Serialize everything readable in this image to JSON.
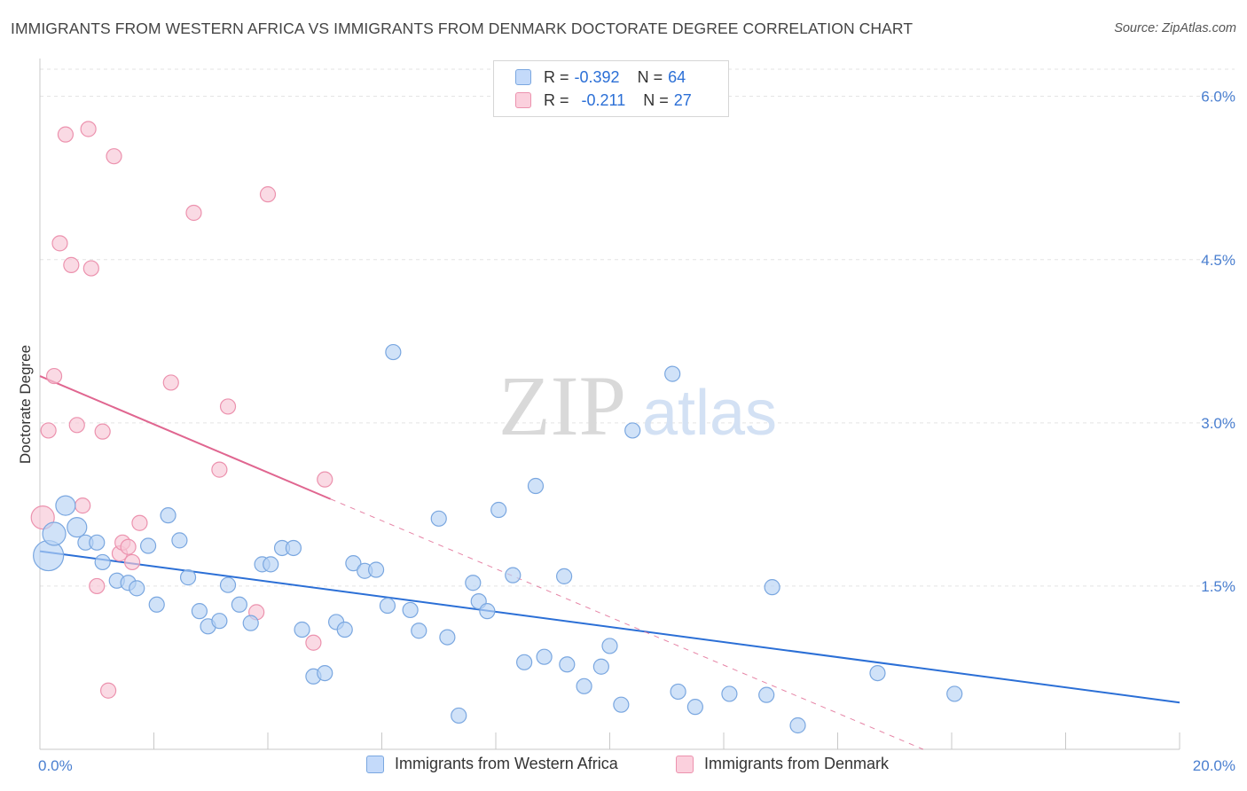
{
  "title": "IMMIGRANTS FROM WESTERN AFRICA VS IMMIGRANTS FROM DENMARK DOCTORATE DEGREE CORRELATION CHART",
  "source": "Source: ZipAtlas.com",
  "watermark": {
    "zip": "ZIP",
    "atlas": "atlas"
  },
  "legend": {
    "r_label": "R =",
    "n_label": "N =",
    "rows": [
      {
        "r": "-0.392",
        "n": "64",
        "color": "#a9c9f2"
      },
      {
        "r": "-0.211",
        "n": "27",
        "color": "#f7b9cc"
      }
    ]
  },
  "colors": {
    "blue_fill": "#b7d2f5",
    "blue_stroke": "#7aa7e0",
    "blue_line": "#2b6fd6",
    "pink_fill": "#f8c6d5",
    "pink_stroke": "#ec92ae",
    "pink_line": "#e06690",
    "grid": "#e3e3e3",
    "axis_text": "#4a7fd0"
  },
  "chart_data": {
    "type": "scatter",
    "title": "IMMIGRANTS FROM WESTERN AFRICA VS IMMIGRANTS FROM DENMARK DOCTORATE DEGREE CORRELATION CHART",
    "xlabel": "",
    "ylabel": "Doctorate Degree",
    "xlim": [
      0,
      20
    ],
    "ylim": [
      0,
      6.25
    ],
    "x_tick_labels": [
      "0.0%",
      "20.0%"
    ],
    "y_ticks": [
      1.5,
      3.0,
      4.5,
      6.0
    ],
    "y_tick_labels": [
      "1.5%",
      "3.0%",
      "4.5%",
      "6.0%"
    ],
    "grid": "horizontal dashed",
    "legend_position": "top-center",
    "series": [
      {
        "name": "Immigrants from Western Africa",
        "color": "#2b6fd6",
        "trend": {
          "x": [
            0.0,
            20.0
          ],
          "y": [
            1.82,
            0.43
          ]
        },
        "points": [
          {
            "x": 0.15,
            "y": 1.78,
            "s": 3
          },
          {
            "x": 0.25,
            "y": 1.98,
            "s": 2
          },
          {
            "x": 0.45,
            "y": 2.24,
            "s": 1.5
          },
          {
            "x": 0.65,
            "y": 2.04,
            "s": 1.5
          },
          {
            "x": 0.8,
            "y": 1.9,
            "s": 1
          },
          {
            "x": 1.0,
            "y": 1.9,
            "s": 1
          },
          {
            "x": 1.1,
            "y": 1.72,
            "s": 1
          },
          {
            "x": 1.35,
            "y": 1.55,
            "s": 1
          },
          {
            "x": 1.55,
            "y": 1.53,
            "s": 1
          },
          {
            "x": 1.7,
            "y": 1.48,
            "s": 1
          },
          {
            "x": 1.9,
            "y": 1.87,
            "s": 1
          },
          {
            "x": 2.05,
            "y": 1.33,
            "s": 1
          },
          {
            "x": 2.25,
            "y": 2.15,
            "s": 1
          },
          {
            "x": 2.45,
            "y": 1.92,
            "s": 1
          },
          {
            "x": 2.6,
            "y": 1.58,
            "s": 1
          },
          {
            "x": 2.8,
            "y": 1.27,
            "s": 1
          },
          {
            "x": 2.95,
            "y": 1.13,
            "s": 1
          },
          {
            "x": 3.15,
            "y": 1.18,
            "s": 1
          },
          {
            "x": 3.3,
            "y": 1.51,
            "s": 1
          },
          {
            "x": 3.5,
            "y": 1.33,
            "s": 1
          },
          {
            "x": 3.7,
            "y": 1.16,
            "s": 1
          },
          {
            "x": 3.9,
            "y": 1.7,
            "s": 1
          },
          {
            "x": 4.05,
            "y": 1.7,
            "s": 1
          },
          {
            "x": 4.25,
            "y": 1.85,
            "s": 1
          },
          {
            "x": 4.45,
            "y": 1.85,
            "s": 1
          },
          {
            "x": 4.6,
            "y": 1.1,
            "s": 1
          },
          {
            "x": 4.8,
            "y": 0.67,
            "s": 1
          },
          {
            "x": 5.0,
            "y": 0.7,
            "s": 1
          },
          {
            "x": 5.2,
            "y": 1.17,
            "s": 1
          },
          {
            "x": 5.35,
            "y": 1.1,
            "s": 1
          },
          {
            "x": 5.5,
            "y": 1.71,
            "s": 1
          },
          {
            "x": 5.7,
            "y": 1.64,
            "s": 1
          },
          {
            "x": 5.9,
            "y": 1.65,
            "s": 1
          },
          {
            "x": 6.1,
            "y": 1.32,
            "s": 1
          },
          {
            "x": 6.2,
            "y": 3.65,
            "s": 1
          },
          {
            "x": 6.5,
            "y": 1.28,
            "s": 1
          },
          {
            "x": 6.65,
            "y": 1.09,
            "s": 1
          },
          {
            "x": 7.0,
            "y": 2.12,
            "s": 1
          },
          {
            "x": 7.15,
            "y": 1.03,
            "s": 1
          },
          {
            "x": 7.35,
            "y": 0.31,
            "s": 1
          },
          {
            "x": 7.6,
            "y": 1.53,
            "s": 1
          },
          {
            "x": 7.7,
            "y": 1.36,
            "s": 1
          },
          {
            "x": 7.85,
            "y": 1.27,
            "s": 1
          },
          {
            "x": 8.05,
            "y": 2.2,
            "s": 1
          },
          {
            "x": 8.3,
            "y": 1.6,
            "s": 1
          },
          {
            "x": 8.5,
            "y": 0.8,
            "s": 1
          },
          {
            "x": 8.7,
            "y": 2.42,
            "s": 1
          },
          {
            "x": 8.85,
            "y": 0.85,
            "s": 1
          },
          {
            "x": 9.2,
            "y": 1.59,
            "s": 1
          },
          {
            "x": 9.25,
            "y": 0.78,
            "s": 1
          },
          {
            "x": 9.55,
            "y": 0.58,
            "s": 1
          },
          {
            "x": 9.85,
            "y": 0.76,
            "s": 1
          },
          {
            "x": 10.0,
            "y": 0.95,
            "s": 1
          },
          {
            "x": 10.2,
            "y": 0.41,
            "s": 1
          },
          {
            "x": 10.4,
            "y": 2.93,
            "s": 1
          },
          {
            "x": 11.1,
            "y": 3.45,
            "s": 1
          },
          {
            "x": 11.2,
            "y": 0.53,
            "s": 1
          },
          {
            "x": 11.5,
            "y": 0.39,
            "s": 1
          },
          {
            "x": 12.1,
            "y": 0.51,
            "s": 1
          },
          {
            "x": 12.75,
            "y": 0.5,
            "s": 1
          },
          {
            "x": 12.85,
            "y": 1.49,
            "s": 1
          },
          {
            "x": 13.3,
            "y": 0.22,
            "s": 1
          },
          {
            "x": 14.7,
            "y": 0.7,
            "s": 1
          },
          {
            "x": 16.05,
            "y": 0.51,
            "s": 1
          }
        ]
      },
      {
        "name": "Immigrants from Denmark",
        "color": "#e06690",
        "trend": {
          "x": [
            0.0,
            5.1
          ],
          "y": [
            3.43,
            2.3
          ],
          "dash_to": [
            15.5,
            0.0
          ]
        },
        "points": [
          {
            "x": 0.05,
            "y": 2.13,
            "s": 2
          },
          {
            "x": 0.15,
            "y": 2.93,
            "s": 1
          },
          {
            "x": 0.25,
            "y": 3.43,
            "s": 1
          },
          {
            "x": 0.35,
            "y": 4.65,
            "s": 1
          },
          {
            "x": 0.45,
            "y": 5.65,
            "s": 1
          },
          {
            "x": 0.55,
            "y": 4.45,
            "s": 1
          },
          {
            "x": 0.65,
            "y": 2.98,
            "s": 1
          },
          {
            "x": 0.75,
            "y": 2.24,
            "s": 1
          },
          {
            "x": 0.85,
            "y": 5.7,
            "s": 1
          },
          {
            "x": 0.9,
            "y": 4.42,
            "s": 1
          },
          {
            "x": 1.0,
            "y": 1.5,
            "s": 1
          },
          {
            "x": 1.1,
            "y": 2.92,
            "s": 1
          },
          {
            "x": 1.2,
            "y": 0.54,
            "s": 1
          },
          {
            "x": 1.3,
            "y": 5.45,
            "s": 1
          },
          {
            "x": 1.4,
            "y": 1.8,
            "s": 1
          },
          {
            "x": 1.45,
            "y": 1.9,
            "s": 1
          },
          {
            "x": 1.55,
            "y": 1.86,
            "s": 1
          },
          {
            "x": 1.62,
            "y": 1.72,
            "s": 1
          },
          {
            "x": 1.75,
            "y": 2.08,
            "s": 1
          },
          {
            "x": 2.3,
            "y": 3.37,
            "s": 1
          },
          {
            "x": 2.7,
            "y": 4.93,
            "s": 1
          },
          {
            "x": 3.15,
            "y": 2.57,
            "s": 1
          },
          {
            "x": 3.3,
            "y": 3.15,
            "s": 1
          },
          {
            "x": 3.8,
            "y": 1.26,
            "s": 1
          },
          {
            "x": 4.0,
            "y": 5.1,
            "s": 1
          },
          {
            "x": 4.8,
            "y": 0.98,
            "s": 1
          },
          {
            "x": 5.0,
            "y": 2.48,
            "s": 1
          }
        ]
      }
    ]
  }
}
